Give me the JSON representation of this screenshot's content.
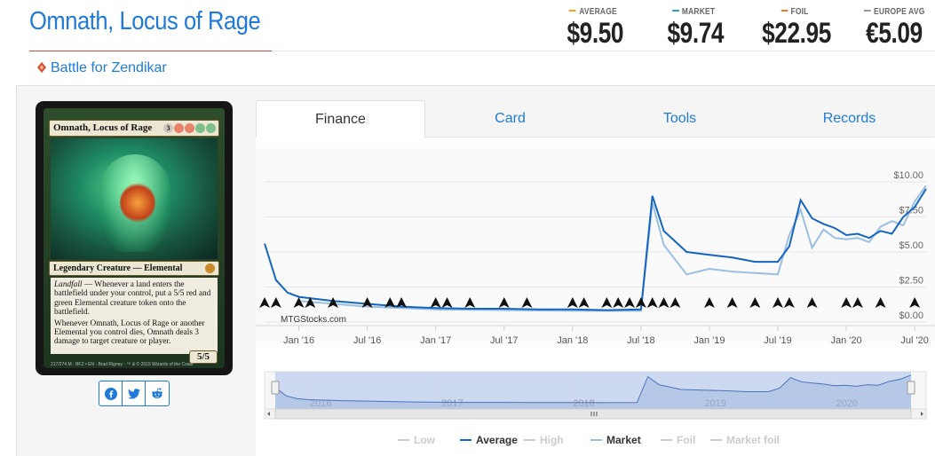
{
  "card": {
    "name": "Omnath, Locus of Rage",
    "set_name": "Battle for Zendikar",
    "mana_cost": [
      "3",
      "R",
      "R",
      "G",
      "G"
    ],
    "type_line": "Legendary Creature — Elemental",
    "text_keyword": "Landfall",
    "text_1": " — Whenever a land enters the battlefield under your control, put a 5/5 red and green Elemental creature token onto the battlefield.",
    "text_2": "Whenever Omnath, Locus of Rage or another Elemental you control dies, Omnath deals 3 damage to target creature or player.",
    "pt": "5/5",
    "collector": "217/274 M",
    "set_code": "BFZ • EN",
    "artist": "Brad Rigney",
    "copyright": "™ & © 2015 Wizards of the Coast"
  },
  "prices": [
    {
      "label": "AVERAGE",
      "value": "$9.50",
      "color": "#f5a623"
    },
    {
      "label": "MARKET",
      "value": "$9.74",
      "color": "#2aa0b8"
    },
    {
      "label": "FOIL",
      "value": "$22.95",
      "color": "#f07b2a"
    },
    {
      "label": "EUROPE AVG",
      "value": "€5.09",
      "color": "#999999"
    }
  ],
  "tabs": [
    "Finance",
    "Card",
    "Tools",
    "Records"
  ],
  "share_icons": [
    "facebook-icon",
    "twitter-icon",
    "reddit-icon"
  ],
  "watermark": "MTGStocks.com",
  "colors": {
    "link": "#1f7ad8",
    "average": "#1565c0",
    "market": "#9bbfe3"
  },
  "chart_data": {
    "type": "line",
    "x_tick_labels": [
      "Jan '16",
      "Jul '16",
      "Jan '17",
      "Jul '17",
      "Jan '18",
      "Jul '18",
      "Jan '19",
      "Jul '19",
      "Jan '20",
      "Jul '20"
    ],
    "y_tick_labels": [
      "$0.00",
      "$2.50",
      "$5.00",
      "$7.50",
      "$10.00"
    ],
    "ylim": [
      0,
      10
    ],
    "xlim": [
      "2015-10",
      "2020-08"
    ],
    "grid": true,
    "series": [
      {
        "name": "Average",
        "color": "#1565c0",
        "x": [
          "2015-10",
          "2015-11",
          "2015-12",
          "2016-01",
          "2016-04",
          "2016-07",
          "2016-10",
          "2017-01",
          "2017-04",
          "2017-07",
          "2017-10",
          "2018-01",
          "2018-04",
          "2018-07",
          "2018-08",
          "2018-09",
          "2018-11",
          "2019-01",
          "2019-03",
          "2019-05",
          "2019-07",
          "2019-08",
          "2019-09",
          "2019-10",
          "2019-11",
          "2019-12",
          "2020-01",
          "2020-02",
          "2020-03",
          "2020-04",
          "2020-05",
          "2020-06",
          "2020-07",
          "2020-08"
        ],
        "values": [
          5.6,
          3.0,
          2.1,
          1.8,
          1.5,
          1.3,
          1.1,
          1.0,
          0.95,
          0.95,
          0.9,
          0.9,
          0.85,
          0.9,
          9.0,
          6.5,
          5.0,
          4.8,
          4.6,
          4.3,
          4.3,
          5.4,
          8.7,
          7.4,
          7.0,
          6.7,
          6.2,
          6.3,
          6.0,
          6.5,
          6.3,
          7.5,
          8.2,
          9.5
        ]
      },
      {
        "name": "Market",
        "color": "#9bbfe3",
        "x": [
          "2016-01",
          "2016-07",
          "2017-01",
          "2017-07",
          "2018-01",
          "2018-07",
          "2018-08",
          "2018-09",
          "2018-11",
          "2019-01",
          "2019-03",
          "2019-05",
          "2019-07",
          "2019-08",
          "2019-09",
          "2019-10",
          "2019-11",
          "2019-12",
          "2020-01",
          "2020-02",
          "2020-03",
          "2020-04",
          "2020-05",
          "2020-06",
          "2020-07",
          "2020-08"
        ],
        "values": [
          1.5,
          1.1,
          0.9,
          0.85,
          0.8,
          0.8,
          8.5,
          5.5,
          3.4,
          3.8,
          3.6,
          3.5,
          3.4,
          6.2,
          8.0,
          5.3,
          6.6,
          6.0,
          5.9,
          6.0,
          5.7,
          6.8,
          7.2,
          6.9,
          8.6,
          9.74
        ]
      }
    ],
    "legend": [
      "Low",
      "Average",
      "High",
      "Market",
      "Foil",
      "Market foil"
    ],
    "legend_active": [
      "Average",
      "Market"
    ],
    "legend_placement": "bottom",
    "navigator_year_labels": [
      "2016",
      "2017",
      "2018",
      "2019",
      "2020"
    ],
    "event_markers": [
      "2015-10",
      "2015-11",
      "2016-01",
      "2016-02",
      "2016-04",
      "2016-07",
      "2016-09",
      "2016-10",
      "2017-01",
      "2017-02",
      "2017-04",
      "2017-07",
      "2017-09",
      "2018-01",
      "2018-02",
      "2018-04",
      "2018-05",
      "2018-06",
      "2018-07",
      "2018-08",
      "2018-09",
      "2018-10",
      "2019-01",
      "2019-03",
      "2019-05",
      "2019-07",
      "2019-08",
      "2019-10",
      "2020-01",
      "2020-02",
      "2020-04",
      "2020-07"
    ]
  }
}
